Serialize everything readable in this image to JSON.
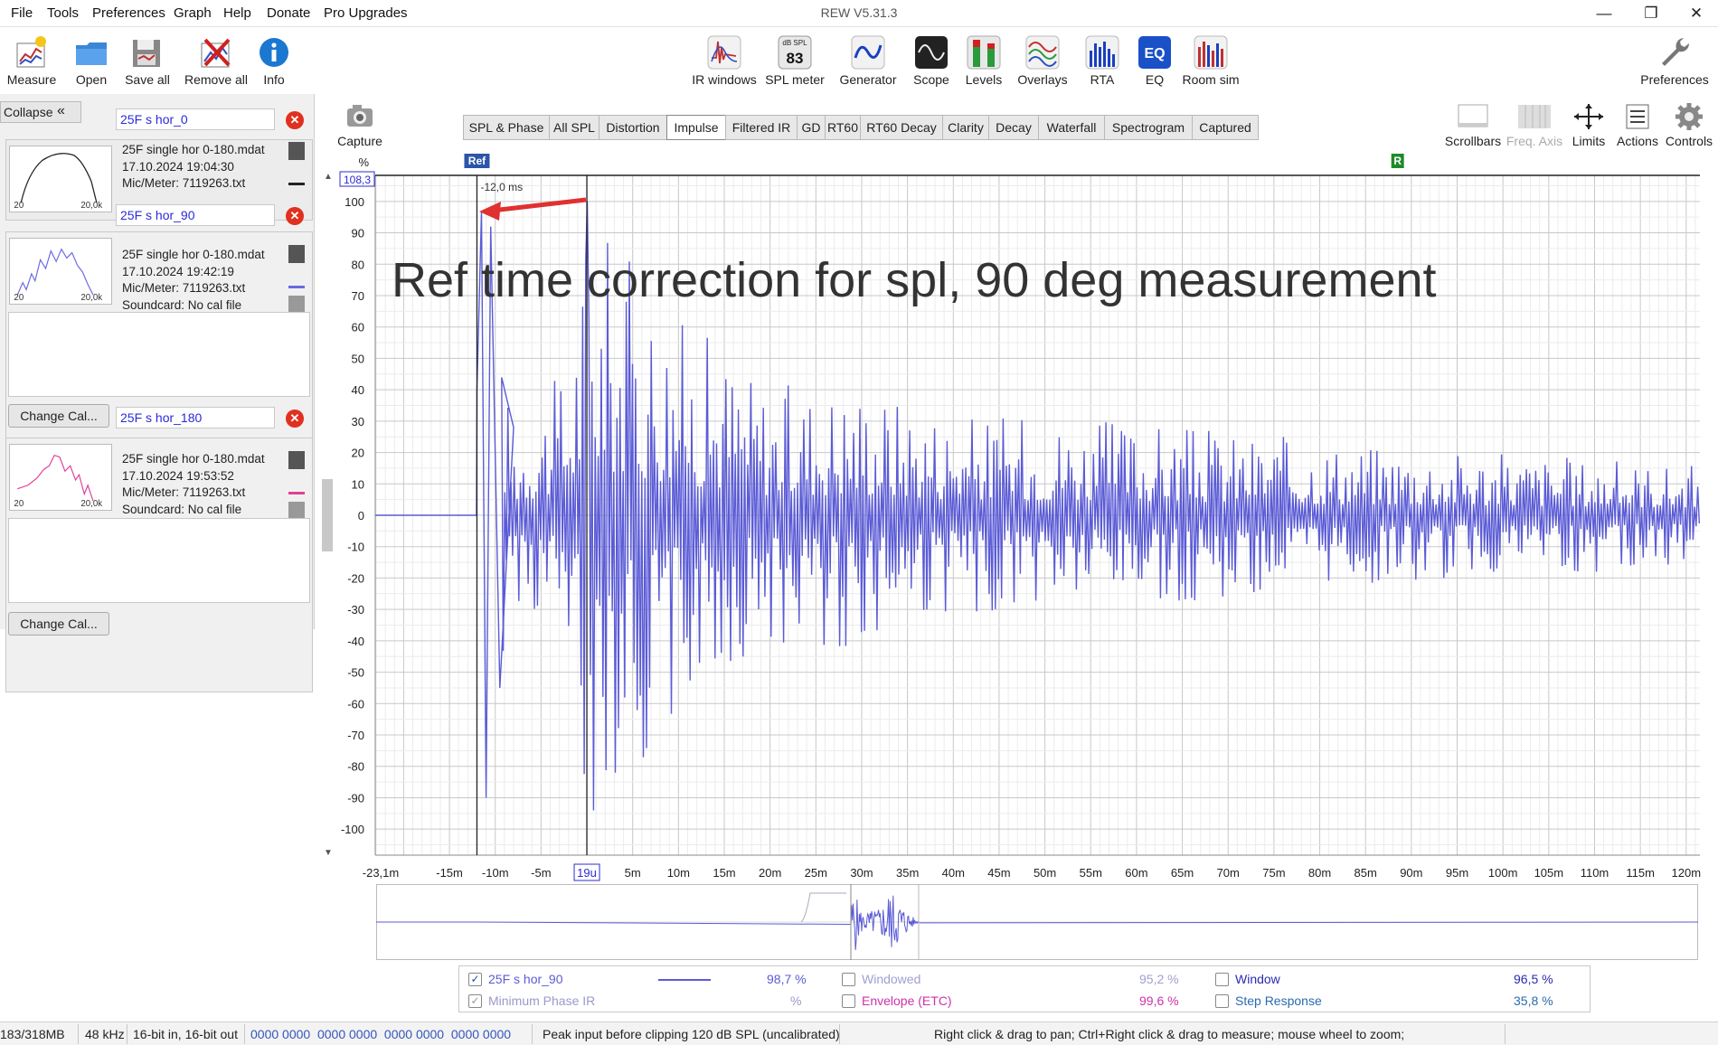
{
  "window": {
    "title": "REW V5.31.3"
  },
  "menu": [
    "File",
    "Tools",
    "Preferences",
    "Graph",
    "Help",
    "Donate",
    "Pro Upgrades"
  ],
  "toolbar_left": [
    {
      "label": "Measure",
      "icon": "measure-icon"
    },
    {
      "label": "Open",
      "icon": "folder-icon"
    },
    {
      "label": "Save all",
      "icon": "save-icon"
    },
    {
      "label": "Remove all",
      "icon": "remove-icon"
    },
    {
      "label": "Info",
      "icon": "info-icon"
    }
  ],
  "toolbar_center": [
    {
      "label": "IR windows",
      "icon": "ir-windows-icon"
    },
    {
      "label": "SPL meter",
      "icon": "spl-meter-icon",
      "badge_top": "dB SPL",
      "badge_value": "83"
    },
    {
      "label": "Generator",
      "icon": "generator-icon"
    },
    {
      "label": "Scope",
      "icon": "scope-icon"
    },
    {
      "label": "Levels",
      "icon": "levels-icon"
    },
    {
      "label": "Overlays",
      "icon": "overlays-icon"
    },
    {
      "label": "RTA",
      "icon": "rta-icon"
    },
    {
      "label": "EQ",
      "icon": "eq-icon"
    },
    {
      "label": "Room sim",
      "icon": "room-sim-icon"
    }
  ],
  "toolbar_right": {
    "label": "Preferences",
    "icon": "wrench-icon"
  },
  "capture": {
    "label": "Capture"
  },
  "right_tools": [
    {
      "label": "Scrollbars",
      "icon": "scrollbars-icon",
      "enabled": true
    },
    {
      "label": "Freq. Axis",
      "icon": "freq-axis-icon",
      "enabled": false
    },
    {
      "label": "Limits",
      "icon": "limits-icon",
      "enabled": true
    },
    {
      "label": "Actions",
      "icon": "actions-icon",
      "enabled": true
    },
    {
      "label": "Controls",
      "icon": "gear-icon",
      "enabled": true
    }
  ],
  "collapse": {
    "label": "Collapse"
  },
  "measurements": [
    {
      "index": "1",
      "name": "25F s hor_0",
      "file": "25F single hor 0-180.mdat",
      "date": "17.10.2024 19:04:30",
      "mic": "Mic/Meter: 7119263.txt",
      "soundcard": "",
      "thumb_left": "20",
      "thumb_right": "20,0k",
      "color": "#222222"
    },
    {
      "index": "2",
      "name": "25F s hor_90",
      "file": "25F single hor 0-180.mdat",
      "date": "17.10.2024 19:42:19",
      "mic": "Mic/Meter: 7119263.txt",
      "soundcard": "Soundcard: No cal file",
      "thumb_left": "20",
      "thumb_right": "20,0k",
      "color": "#6a6ae0"
    },
    {
      "index": "3",
      "name": "25F s hor_180",
      "file": "25F single hor 0-180.mdat",
      "date": "17.10.2024 19:53:52",
      "mic": "Mic/Meter: 7119263.txt",
      "soundcard": "Soundcard: No cal file",
      "thumb_left": "20",
      "thumb_right": "20,0k",
      "color": "#e0409a"
    }
  ],
  "change_cal": "Change Cal...",
  "tabs": [
    "SPL & Phase",
    "All SPL",
    "Distortion",
    "Impulse",
    "Filtered IR",
    "GD",
    "RT60",
    "RT60 Decay",
    "Clarity",
    "Decay",
    "Waterfall",
    "Spectrogram",
    "Captured"
  ],
  "active_tab": "Impulse",
  "chart_data": {
    "type": "line",
    "ylabel": "%",
    "ylim": [
      -108.3,
      108.3
    ],
    "y_top_label": "108,3",
    "y_ticks": [
      100,
      90,
      80,
      70,
      60,
      50,
      40,
      30,
      20,
      10,
      0,
      -10,
      -20,
      -30,
      -40,
      -50,
      -60,
      -70,
      -80,
      -90,
      -100
    ],
    "xlim_ms": [
      -23.1,
      121.5
    ],
    "x_ticks": [
      {
        "v": -23.1,
        "label": "-23,1m"
      },
      {
        "v": -15,
        "label": "-15m"
      },
      {
        "v": -10,
        "label": "-10m"
      },
      {
        "v": -5,
        "label": "-5m"
      },
      {
        "v": 0,
        "label": "19u"
      },
      {
        "v": 5,
        "label": "5m"
      },
      {
        "v": 10,
        "label": "10m"
      },
      {
        "v": 15,
        "label": "15m"
      },
      {
        "v": 20,
        "label": "20m"
      },
      {
        "v": 25,
        "label": "25m"
      },
      {
        "v": 30,
        "label": "30m"
      },
      {
        "v": 35,
        "label": "35m"
      },
      {
        "v": 40,
        "label": "40m"
      },
      {
        "v": 45,
        "label": "45m"
      },
      {
        "v": 50,
        "label": "50m"
      },
      {
        "v": 55,
        "label": "55m"
      },
      {
        "v": 60,
        "label": "60m"
      },
      {
        "v": 65,
        "label": "65m"
      },
      {
        "v": 70,
        "label": "70m"
      },
      {
        "v": 75,
        "label": "75m"
      },
      {
        "v": 80,
        "label": "80m"
      },
      {
        "v": 85,
        "label": "85m"
      },
      {
        "v": 90,
        "label": "90m"
      },
      {
        "v": 95,
        "label": "95m"
      },
      {
        "v": 100,
        "label": "100m"
      },
      {
        "v": 105,
        "label": "105m"
      },
      {
        "v": 110,
        "label": "110m"
      },
      {
        "v": 115,
        "label": "115m"
      },
      {
        "v": 120,
        "label": "120m"
      }
    ],
    "grid": true,
    "cursor_label": "-12,0 ms",
    "ref_marker": {
      "label": "Ref",
      "x_ms": -12.0
    },
    "right_marker": {
      "label": "R",
      "x_ms": 88.5
    },
    "annotation": "Ref time correction for spl, 90 deg measurement",
    "series": [
      {
        "name": "25F s hor_90",
        "color": "#5b5bd6",
        "onset_ms": -12.0,
        "envelope": [
          {
            "x": -23.1,
            "y": 0
          },
          {
            "x": -12.1,
            "y": 0
          },
          {
            "x": -12.0,
            "y": 40
          },
          {
            "x": -11.5,
            "y": 97
          },
          {
            "x": -11.0,
            "y": -90
          },
          {
            "x": -10.5,
            "y": 92
          },
          {
            "x": -9.5,
            "y": -55
          },
          {
            "x": -8,
            "y": 28
          },
          {
            "x": -2,
            "y": 48
          },
          {
            "x": 0,
            "y": 100
          },
          {
            "x": 10,
            "y": 65
          },
          {
            "x": 11.5,
            "y": -62
          },
          {
            "x": 20,
            "y": 42
          },
          {
            "x": 30,
            "y": -43
          },
          {
            "x": 40,
            "y": 33
          },
          {
            "x": 60,
            "y": 30
          },
          {
            "x": 80,
            "y": 24
          },
          {
            "x": 100,
            "y": 20
          },
          {
            "x": 121.5,
            "y": 16
          }
        ]
      }
    ]
  },
  "legend": {
    "rows": [
      {
        "checked": true,
        "label": "25F s hor_90",
        "value": "98,7 %",
        "color": "#5b5bd6"
      },
      {
        "checked": true,
        "label": "Minimum Phase IR",
        "value": "%",
        "color": "#9999cc"
      }
    ],
    "col2": [
      {
        "checked": false,
        "label": "Windowed",
        "value": "95,2 %",
        "color": "#a0a0d0"
      },
      {
        "checked": false,
        "label": "Envelope (ETC)",
        "value": "99,6 %",
        "color": "#cc33aa"
      }
    ],
    "col3": [
      {
        "checked": false,
        "label": "Window",
        "value": "96,5 %",
        "color": "#2a2ab0"
      },
      {
        "checked": false,
        "label": "Step Response",
        "value": "35,8 %",
        "color": "#2a6ab0"
      }
    ]
  },
  "status": {
    "memory": "183/318MB",
    "rate": "48 kHz",
    "bits": "16-bit in, 16-bit out",
    "levels": "0000 0000  0000 0000  0000 0000  0000 0000",
    "peak": "Peak input before clipping 120 dB SPL (uncalibrated)",
    "hint": "Right click & drag to pan; Ctrl+Right click & drag to measure; mouse wheel to zoom;"
  },
  "colors": {
    "trace": "#5b5bd6",
    "annotation_arrow": "#e03030",
    "accent": "#2b2bd6"
  }
}
